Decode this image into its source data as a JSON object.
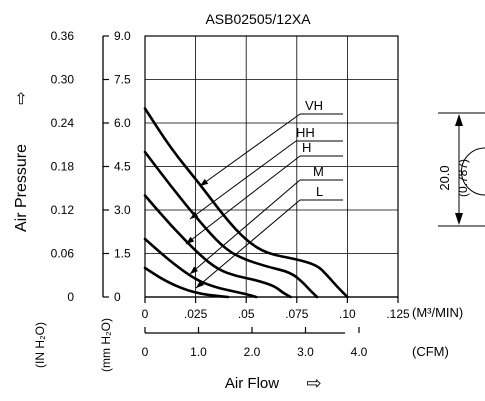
{
  "chart_data": {
    "type": "line",
    "title": "ASB02505/12XA",
    "xlabel": "Air Flow",
    "xlabel_arrow": "⇨",
    "ylabel": "Air Pressure",
    "ylabel_arrow": "⇨",
    "x_unit_primary": "(M³/MIN)",
    "x_unit_secondary": "(CFM)",
    "y_unit_primary": "(IN H₂O)",
    "y_unit_secondary": "(mm H₂O)",
    "xlim": [
      0,
      0.125
    ],
    "ylim": [
      0,
      9.0
    ],
    "x_ticks": [
      "0",
      ".025",
      ".05",
      ".075",
      ".10",
      ".125"
    ],
    "x_secondary_ticks": [
      "0",
      "1.0",
      "2.0",
      "3.0",
      "4.0"
    ],
    "y_ticks_primary": [
      "0",
      "0.06",
      "0.12",
      "0.18",
      "0.24",
      "0.30",
      "0.36"
    ],
    "y_ticks_secondary": [
      "0",
      "1.5",
      "3.0",
      "4.5",
      "6.0",
      "7.5",
      "9.0"
    ],
    "grid": true,
    "side_dimension": {
      "value": "20.0",
      "sub": "(0.787)"
    },
    "series": [
      {
        "name": "VH",
        "x": [
          0,
          0.013,
          0.027,
          0.04,
          0.05,
          0.06,
          0.075,
          0.085,
          0.09,
          0.095,
          0.1
        ],
        "y": [
          6.5,
          5.1,
          3.9,
          2.7,
          1.95,
          1.5,
          1.3,
          1.1,
          0.75,
          0.35,
          0
        ]
      },
      {
        "name": "HH",
        "x": [
          0,
          0.013,
          0.027,
          0.038,
          0.047,
          0.06,
          0.072,
          0.078,
          0.082,
          0.085
        ],
        "y": [
          5.0,
          3.8,
          2.6,
          1.75,
          1.35,
          1.05,
          0.85,
          0.5,
          0.2,
          0
        ]
      },
      {
        "name": "H",
        "x": [
          0,
          0.013,
          0.027,
          0.036,
          0.045,
          0.055,
          0.064,
          0.068,
          0.072
        ],
        "y": [
          3.5,
          2.45,
          1.45,
          0.95,
          0.72,
          0.58,
          0.38,
          0.15,
          0
        ]
      },
      {
        "name": "M",
        "x": [
          0,
          0.013,
          0.025,
          0.034,
          0.042,
          0.05,
          0.055
        ],
        "y": [
          2.0,
          1.2,
          0.6,
          0.35,
          0.22,
          0.1,
          0
        ]
      },
      {
        "name": "L",
        "x": [
          0,
          0.01,
          0.02,
          0.028,
          0.035,
          0.041
        ],
        "y": [
          1.0,
          0.55,
          0.25,
          0.1,
          0.04,
          0
        ]
      }
    ]
  }
}
